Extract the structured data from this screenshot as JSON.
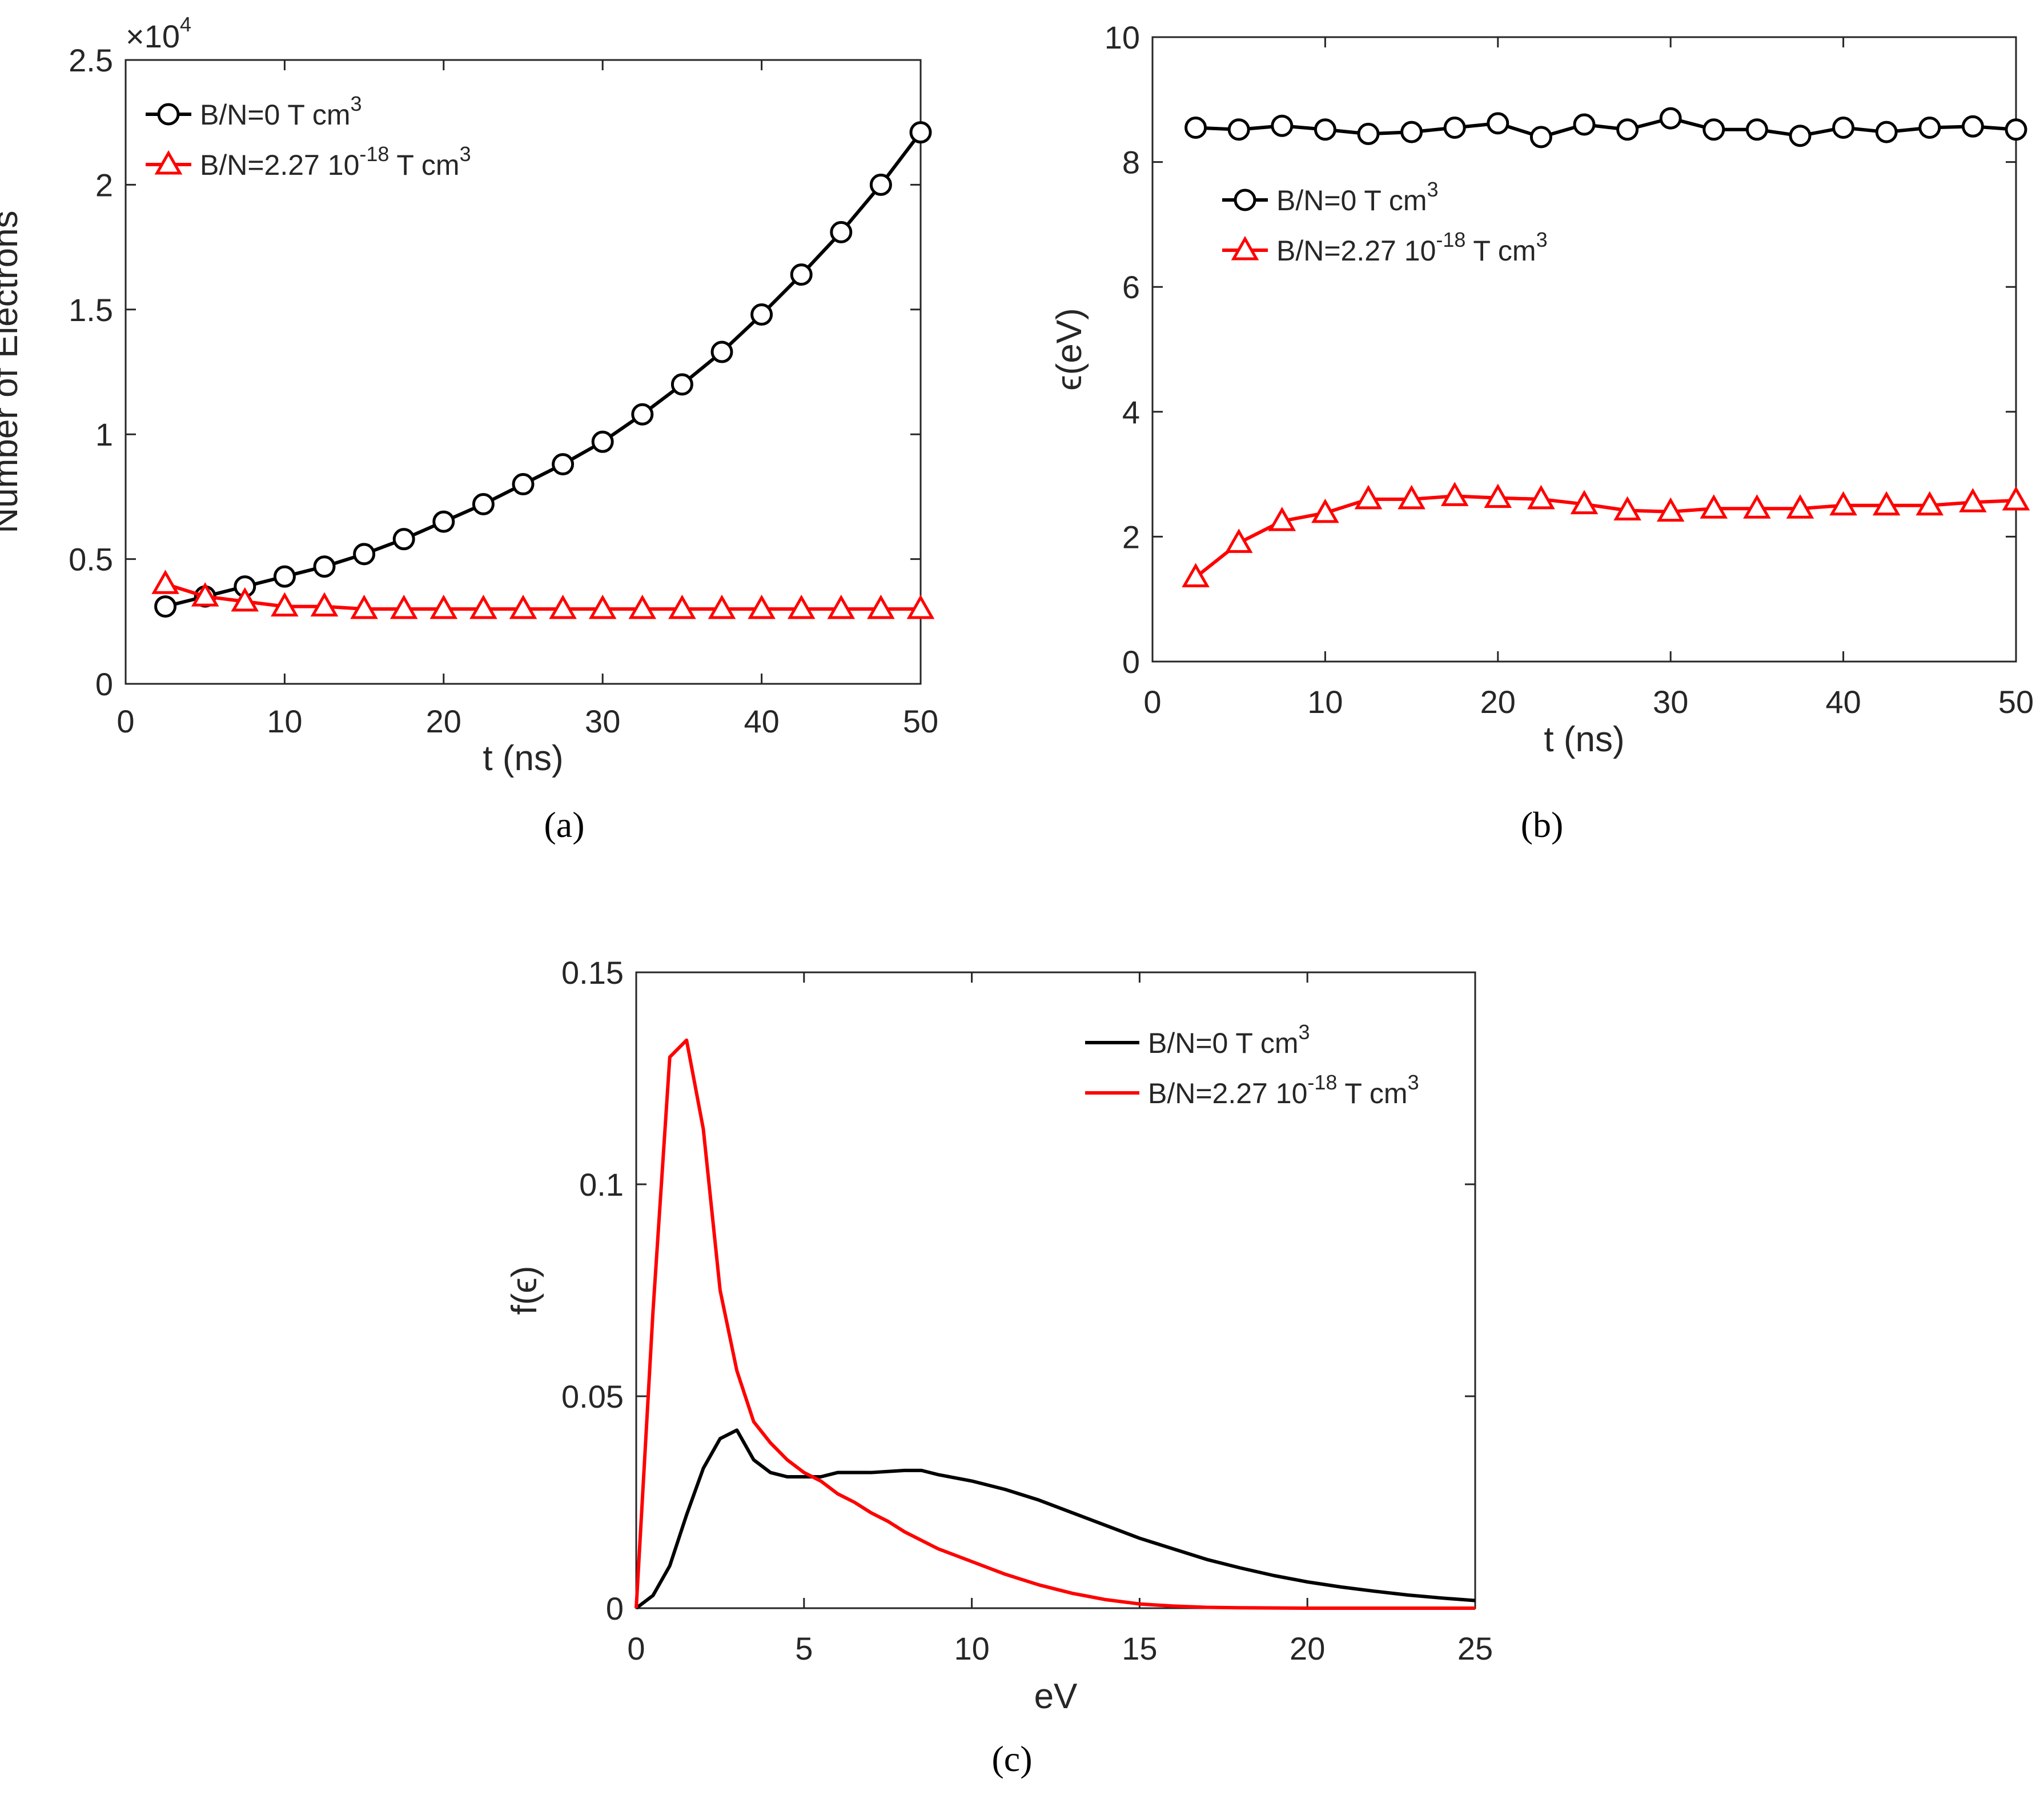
{
  "colors": {
    "black_series": "#000000",
    "red_series": "#ff0000",
    "axis": "#262626"
  },
  "chart_data": [
    {
      "id": "a",
      "caption": "(a)",
      "type": "line",
      "marker_style": "markers",
      "xlabel": "t (ns)",
      "ylabel": "Number of Electrons",
      "exponent": "×10",
      "exponent_power": "4",
      "xlim": [
        0,
        50
      ],
      "ylim": [
        0,
        2.5
      ],
      "xticks": [
        0,
        10,
        20,
        30,
        40,
        50
      ],
      "xticklabels": [
        "0",
        "10",
        "20",
        "30",
        "40",
        "50"
      ],
      "yticks": [
        0,
        0.5,
        1,
        1.5,
        2,
        2.5
      ],
      "yticklabels": [
        "0",
        "0.5",
        "1",
        "1.5",
        "2",
        "2.5"
      ],
      "legend_position": "top-left",
      "series": [
        {
          "name": "B/N=0 T cm",
          "name_sup": "3",
          "name_suffix": "",
          "color": "#000000",
          "marker": "circle",
          "x": [
            2.5,
            5,
            7.5,
            10,
            12.5,
            15,
            17.5,
            20,
            22.5,
            25,
            27.5,
            30,
            32.5,
            35,
            37.5,
            40,
            42.5,
            45,
            47.5,
            50
          ],
          "y": [
            0.31,
            0.35,
            0.39,
            0.43,
            0.47,
            0.52,
            0.58,
            0.65,
            0.72,
            0.8,
            0.88,
            0.97,
            1.08,
            1.2,
            1.33,
            1.48,
            1.64,
            1.81,
            2.0,
            2.21
          ]
        },
        {
          "name": "B/N=2.27 10",
          "name_sup": "-18",
          "name_suffix": " T cm",
          "name_sup2": "3",
          "color": "#ff0000",
          "marker": "triangle",
          "x": [
            2.5,
            5,
            7.5,
            10,
            12.5,
            15,
            17.5,
            20,
            22.5,
            25,
            27.5,
            30,
            32.5,
            35,
            37.5,
            40,
            42.5,
            45,
            47.5,
            50
          ],
          "y": [
            0.4,
            0.35,
            0.33,
            0.31,
            0.31,
            0.3,
            0.3,
            0.3,
            0.3,
            0.3,
            0.3,
            0.3,
            0.3,
            0.3,
            0.3,
            0.3,
            0.3,
            0.3,
            0.3,
            0.3
          ]
        }
      ]
    },
    {
      "id": "b",
      "caption": "(b)",
      "type": "line",
      "marker_style": "markers",
      "xlabel": "t (ns)",
      "ylabel": "ϵ(eV)",
      "xlim": [
        0,
        50
      ],
      "ylim": [
        0,
        10
      ],
      "xticks": [
        0,
        10,
        20,
        30,
        40,
        50
      ],
      "xticklabels": [
        "0",
        "10",
        "20",
        "30",
        "40",
        "50"
      ],
      "yticks": [
        0,
        2,
        4,
        6,
        8,
        10
      ],
      "yticklabels": [
        "0",
        "2",
        "4",
        "6",
        "8",
        "10"
      ],
      "legend_position": "upper-left",
      "series": [
        {
          "name": "B/N=0 T cm",
          "name_sup": "3",
          "name_suffix": "",
          "color": "#000000",
          "marker": "circle",
          "x": [
            2.5,
            5,
            7.5,
            10,
            12.5,
            15,
            17.5,
            20,
            22.5,
            25,
            27.5,
            30,
            32.5,
            35,
            37.5,
            40,
            42.5,
            45,
            47.5,
            50
          ],
          "y": [
            8.55,
            8.52,
            8.58,
            8.52,
            8.45,
            8.48,
            8.55,
            8.62,
            8.4,
            8.6,
            8.52,
            8.7,
            8.52,
            8.52,
            8.42,
            8.55,
            8.48,
            8.55,
            8.57,
            8.52
          ]
        },
        {
          "name": "B/N=2.27 10",
          "name_sup": "-18",
          "name_suffix": " T cm",
          "name_sup2": "3",
          "color": "#ff0000",
          "marker": "triangle",
          "x": [
            2.5,
            5,
            7.5,
            10,
            12.5,
            15,
            17.5,
            20,
            22.5,
            25,
            27.5,
            30,
            32.5,
            35,
            37.5,
            40,
            42.5,
            45,
            47.5,
            50
          ],
          "y": [
            1.35,
            1.9,
            2.25,
            2.38,
            2.6,
            2.6,
            2.65,
            2.62,
            2.6,
            2.52,
            2.42,
            2.4,
            2.45,
            2.45,
            2.45,
            2.5,
            2.5,
            2.5,
            2.55,
            2.58
          ]
        }
      ]
    },
    {
      "id": "c",
      "caption": "(c)",
      "type": "line",
      "marker_style": "none",
      "xlabel": "eV",
      "ylabel": "f(ϵ)",
      "xlim": [
        0,
        25
      ],
      "ylim": [
        0,
        0.15
      ],
      "xticks": [
        0,
        5,
        10,
        15,
        20,
        25
      ],
      "xticklabels": [
        "0",
        "5",
        "10",
        "15",
        "20",
        "25"
      ],
      "yticks": [
        0,
        0.05,
        0.1,
        0.15
      ],
      "yticklabels": [
        "0",
        "0.05",
        "0.1",
        "0.15"
      ],
      "legend_position": "top-right",
      "series": [
        {
          "name": "B/N=0 T cm",
          "name_sup": "3",
          "name_suffix": "",
          "color": "#000000",
          "marker": "none",
          "x": [
            0,
            0.5,
            1,
            1.5,
            2,
            2.5,
            3,
            3.5,
            4,
            4.5,
            5,
            5.5,
            6,
            7,
            8,
            8.5,
            9,
            10,
            11,
            12,
            13,
            14,
            15,
            16,
            17,
            18,
            19,
            20,
            21,
            22,
            23,
            24,
            25
          ],
          "y": [
            0,
            0.003,
            0.01,
            0.022,
            0.033,
            0.04,
            0.042,
            0.035,
            0.032,
            0.031,
            0.031,
            0.031,
            0.032,
            0.032,
            0.0325,
            0.0325,
            0.0315,
            0.03,
            0.028,
            0.0255,
            0.0225,
            0.0195,
            0.0165,
            0.014,
            0.0115,
            0.0095,
            0.0077,
            0.0062,
            0.005,
            0.004,
            0.0031,
            0.0024,
            0.0018
          ]
        },
        {
          "name": "B/N=2.27 10",
          "name_sup": "-18",
          "name_suffix": " T cm",
          "name_sup2": "3",
          "color": "#ff0000",
          "marker": "none",
          "x": [
            0,
            0.5,
            1,
            1.5,
            2,
            2.5,
            3,
            3.5,
            4,
            4.5,
            5,
            5.5,
            6,
            6.5,
            7,
            7.5,
            8,
            9,
            10,
            11,
            12,
            13,
            14,
            15,
            16,
            17,
            18,
            20,
            22,
            25
          ],
          "y": [
            0,
            0.07,
            0.13,
            0.134,
            0.113,
            0.075,
            0.056,
            0.044,
            0.039,
            0.035,
            0.032,
            0.03,
            0.027,
            0.025,
            0.0225,
            0.0205,
            0.018,
            0.014,
            0.011,
            0.008,
            0.0055,
            0.0035,
            0.002,
            0.001,
            0.0005,
            0.0002,
            0.0001,
            0,
            0,
            0
          ]
        }
      ]
    }
  ]
}
